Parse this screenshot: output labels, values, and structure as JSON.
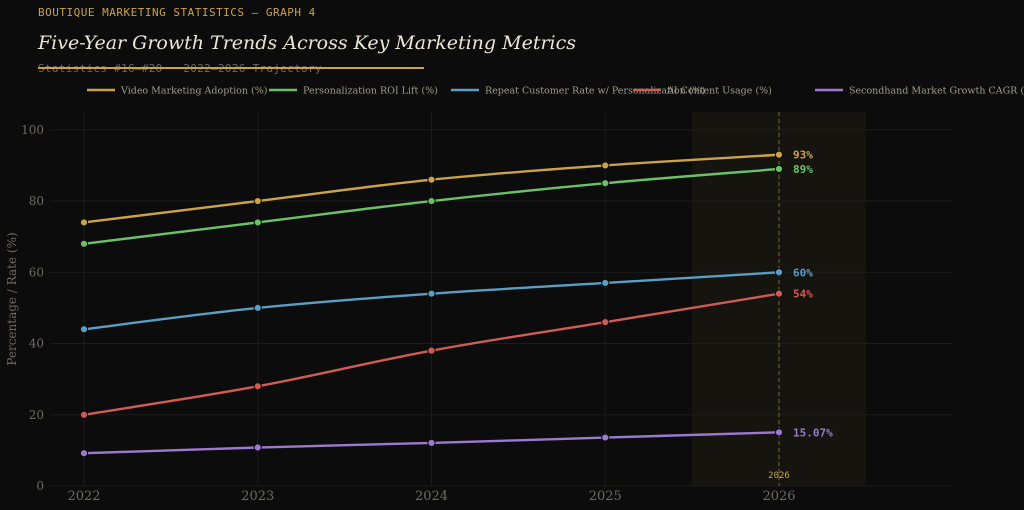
{
  "header": {
    "kicker": "BOUTIQUE MARKETING STATISTICS — GRAPH 4",
    "title": "Five-Year Growth Trends Across Key Marketing Metrics",
    "subtitle": "Statistics #16–#20 · 2022–2026 Trajectory"
  },
  "colors": {
    "background": "#0c0c0c",
    "grid": "#1c1c1c",
    "axis_text": "#6f6a60",
    "accent": "#c9a24a",
    "highlight_band": "#15140f"
  },
  "chart_data": {
    "type": "line",
    "x": [
      "2022",
      "2023",
      "2024",
      "2025",
      "2026"
    ],
    "ylabel": "Percentage / Rate (%)",
    "ylim": [
      0,
      105
    ],
    "yticks": [
      0,
      20,
      40,
      60,
      80,
      100
    ],
    "grid": true,
    "legend_position": "top",
    "highlight": {
      "category": "2026",
      "label": "2026"
    },
    "series": [
      {
        "name": "Video Marketing Adoption (%)",
        "color": "#c9a24a",
        "values": [
          74,
          80,
          86,
          90,
          93
        ],
        "end_label": "93%"
      },
      {
        "name": "Personalization ROI Lift (%)",
        "color": "#6cc06a",
        "values": [
          68,
          74,
          80,
          85,
          89
        ],
        "end_label": "89%"
      },
      {
        "name": "Repeat Customer Rate w/ Personalization (%)",
        "color": "#5b9ec4",
        "values": [
          44,
          50,
          54,
          57,
          60
        ],
        "end_label": "60%"
      },
      {
        "name": "AI Content Usage (%)",
        "color": "#cf5b55",
        "values": [
          20,
          28,
          38,
          46,
          54
        ],
        "end_label": "54%"
      },
      {
        "name": "Secondhand Market Growth CAGR (%)",
        "color": "#9b79cf",
        "values": [
          9.2,
          10.8,
          12.1,
          13.6,
          15.07
        ],
        "end_label": "15.07%"
      }
    ]
  }
}
